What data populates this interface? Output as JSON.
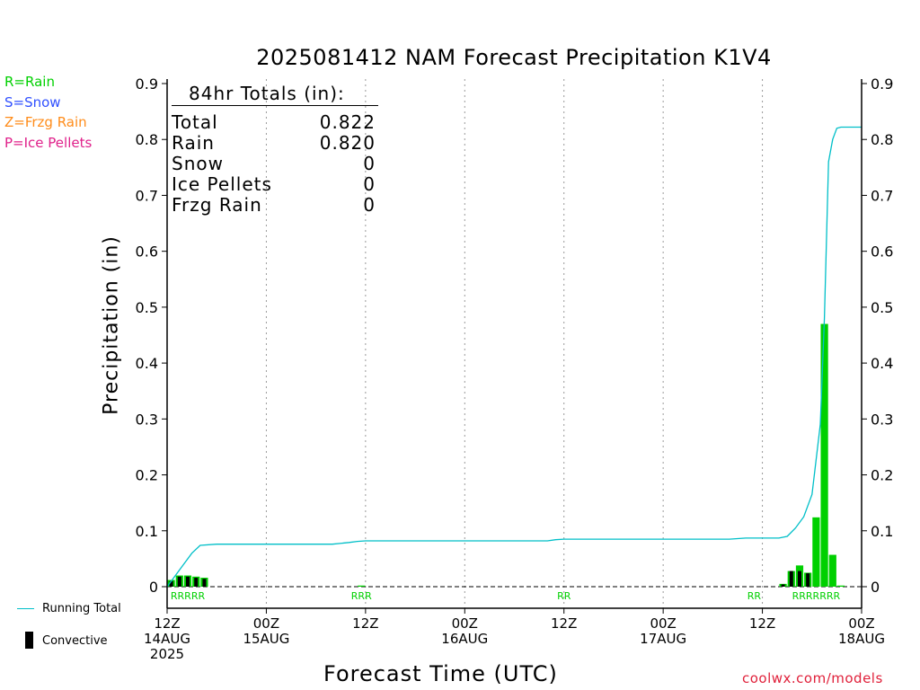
{
  "title": "2025081412 NAM Forecast Precipitation K1V4",
  "legend": {
    "rain": {
      "label": "R=Rain",
      "color": "#00d000"
    },
    "snow": {
      "label": "S=Snow",
      "color": "#3050ff"
    },
    "zr": {
      "label": "Z=Frzg Rain",
      "color": "#ff8c1a"
    },
    "ip": {
      "label": "P=Ice Pellets",
      "color": "#e0208a"
    },
    "running_total": "Running Total",
    "convective": "Convective"
  },
  "totals": {
    "header": "84hr Totals (in):",
    "rows": [
      {
        "label": "Total",
        "value": "0.822"
      },
      {
        "label": "Rain",
        "value": "0.820"
      },
      {
        "label": "Snow",
        "value": "0"
      },
      {
        "label": "Ice Pellets",
        "value": "0"
      },
      {
        "label": "Frzg Rain",
        "value": "0"
      }
    ]
  },
  "credit": "coolwx.com/models",
  "chart_data": {
    "type": "bar",
    "title": "2025081412 NAM Forecast Precipitation K1V4",
    "xlabel": "Forecast Time (UTC)",
    "ylabel": "Precipitation (in)",
    "x_range_hours": [
      0,
      84
    ],
    "ylim": [
      0,
      0.9
    ],
    "yticks": [
      "0",
      "0.1",
      "0.2",
      "0.3",
      "0.4",
      "0.5",
      "0.6",
      "0.7",
      "0.8",
      "0.9"
    ],
    "xticks": [
      {
        "hour": 0,
        "lines": [
          "12Z",
          "14AUG",
          "2025"
        ]
      },
      {
        "hour": 12,
        "lines": [
          "00Z",
          "15AUG"
        ]
      },
      {
        "hour": 24,
        "lines": [
          "12Z"
        ]
      },
      {
        "hour": 36,
        "lines": [
          "00Z",
          "16AUG"
        ]
      },
      {
        "hour": 48,
        "lines": [
          "12Z"
        ]
      },
      {
        "hour": 60,
        "lines": [
          "00Z",
          "17AUG"
        ]
      },
      {
        "hour": 72,
        "lines": [
          "12Z"
        ]
      },
      {
        "hour": 84,
        "lines": [
          "00Z",
          "18AUG"
        ]
      }
    ],
    "grid": "vertical dotted",
    "series": [
      {
        "name": "Running Total",
        "color": "#00bfc8",
        "x": [
          0,
          1,
          2,
          3,
          4,
          6,
          12,
          20,
          22,
          23,
          24,
          30,
          46,
          47,
          48,
          60,
          68,
          70,
          71,
          74,
          75,
          76,
          77,
          78,
          79,
          79.5,
          80,
          80.5,
          81,
          81.5,
          82,
          84
        ],
        "y": [
          0.0,
          0.02,
          0.04,
          0.06,
          0.074,
          0.076,
          0.076,
          0.076,
          0.079,
          0.081,
          0.082,
          0.082,
          0.082,
          0.084,
          0.085,
          0.085,
          0.085,
          0.087,
          0.087,
          0.087,
          0.09,
          0.105,
          0.125,
          0.165,
          0.29,
          0.48,
          0.76,
          0.8,
          0.82,
          0.822,
          0.822,
          0.822
        ]
      },
      {
        "name": "Rain",
        "color": "#00d000",
        "x": [
          0.5,
          1.5,
          2.5,
          3.5,
          4.5,
          23.5,
          74.5,
          75.5,
          76.5,
          77.5,
          78.5,
          79.5,
          80.5,
          81.5
        ],
        "y": [
          0.012,
          0.02,
          0.02,
          0.018,
          0.016,
          0.002,
          0.005,
          0.028,
          0.038,
          0.025,
          0.124,
          0.47,
          0.057,
          0.002
        ]
      },
      {
        "name": "Convective",
        "x": [
          0.5,
          1.5,
          2.5,
          3.5,
          4.5,
          74.5,
          75.5,
          76.5,
          77.5
        ],
        "y": [
          0.01,
          0.018,
          0.018,
          0.016,
          0.014,
          0.004,
          0.028,
          0.028,
          0.024
        ]
      }
    ],
    "type_markers": [
      {
        "text": "RRRRR",
        "hour": 2.5
      },
      {
        "text": "RRR",
        "hour": 23.5
      },
      {
        "text": "RR",
        "hour": 48
      },
      {
        "text": "RR",
        "hour": 71
      },
      {
        "text": "RRRRRRR",
        "hour": 78.5
      }
    ]
  }
}
